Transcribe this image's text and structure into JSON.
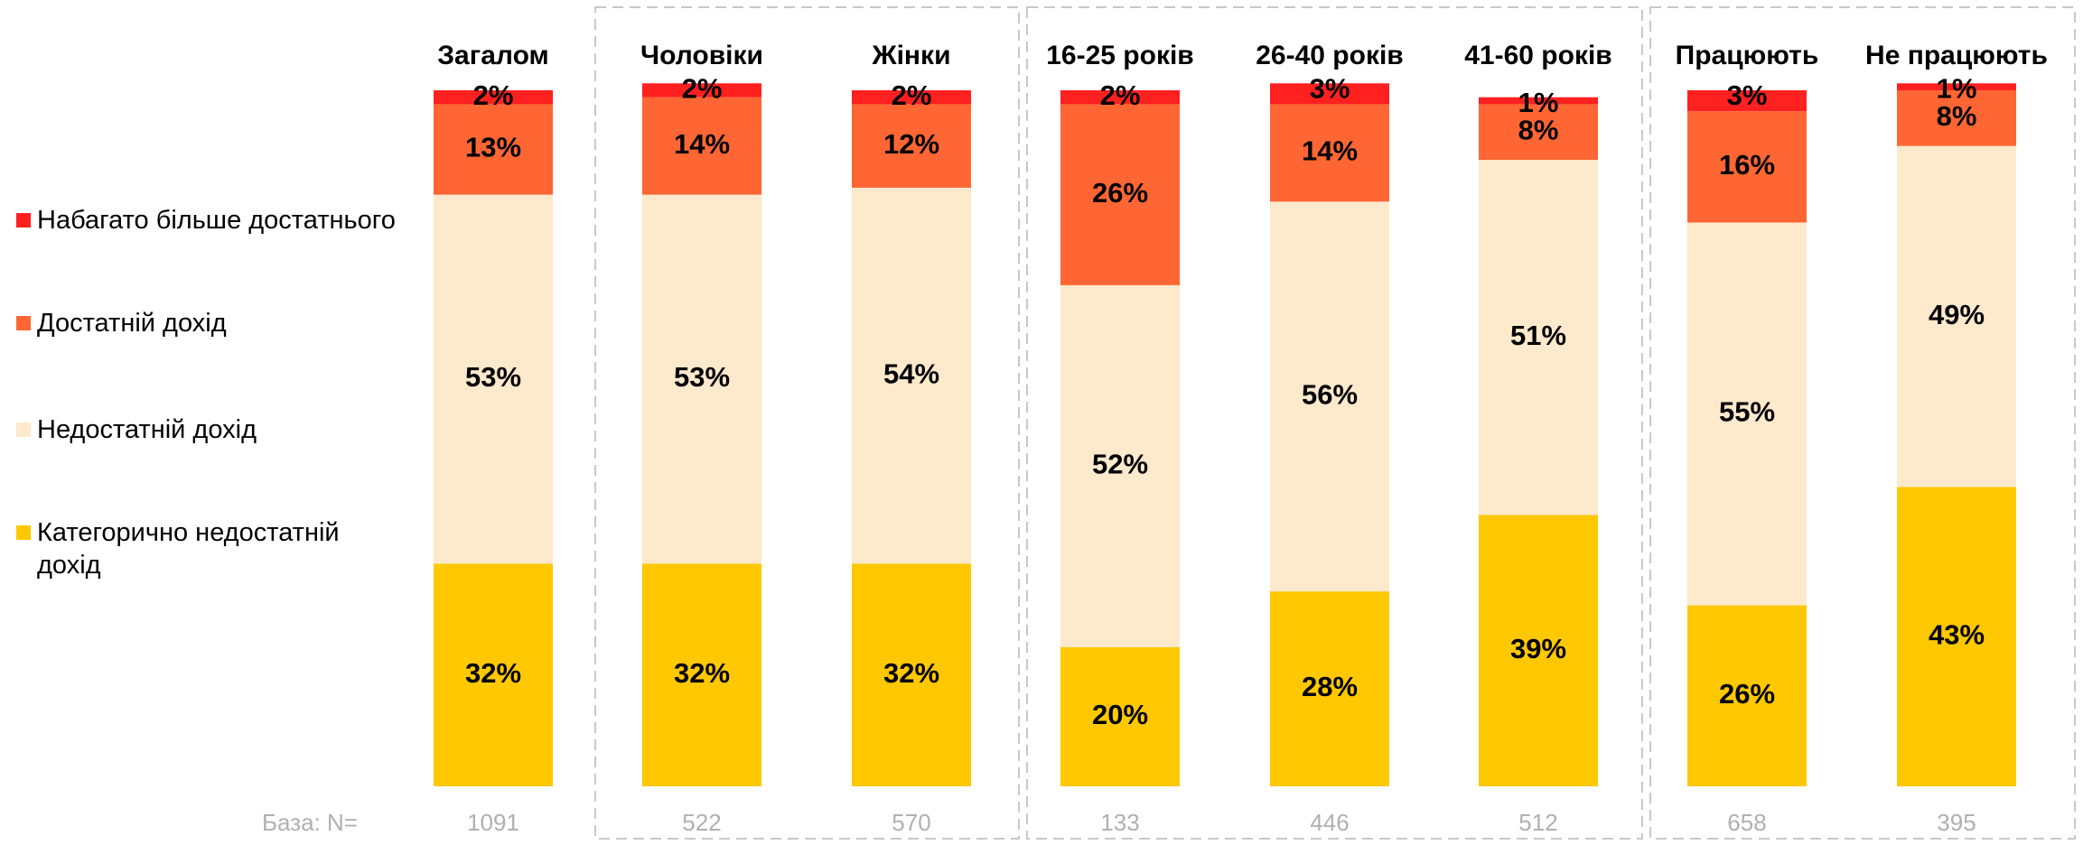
{
  "chart_data": {
    "type": "stacked_bar",
    "categories": [
      "Загалом",
      "Чоловіки",
      "Жінки",
      "16-25 років",
      "26-40 років",
      "41-60 років",
      "Працюють",
      "Не працюють"
    ],
    "series": [
      {
        "name": "Категорично недостатній дохід",
        "color": "#ffc800",
        "values": [
          32,
          32,
          32,
          20,
          28,
          39,
          26,
          43
        ],
        "value_labels": [
          "32%",
          "32%",
          "32%",
          "20%",
          "28%",
          "39%",
          "26%",
          "43%"
        ]
      },
      {
        "name": "Недостатній дохід",
        "color": "#fde9cc",
        "values": [
          53,
          53,
          54,
          52,
          56,
          51,
          55,
          49
        ],
        "value_labels": [
          "53%",
          "53%",
          "54%",
          "52%",
          "56%",
          "51%",
          "55%",
          "49%"
        ]
      },
      {
        "name": "Достатній дохід",
        "color": "#ff6633",
        "values": [
          13,
          14,
          12,
          26,
          14,
          8,
          16,
          8
        ],
        "value_labels": [
          "13%",
          "14%",
          "12%",
          "26%",
          "14%",
          "8%",
          "16%",
          "8%"
        ]
      },
      {
        "name": "Набагато більше достатнього",
        "color": "#ff2020",
        "values": [
          2,
          2,
          2,
          2,
          3,
          1,
          3,
          1
        ],
        "value_labels": [
          "2%",
          "2%",
          "2%",
          "2%",
          "3%",
          "1%",
          "3%",
          "1%"
        ]
      }
    ],
    "ylim": [
      0,
      100
    ],
    "base_label": "База: N=",
    "bases": [
      1091,
      522,
      570,
      133,
      446,
      512,
      658,
      395
    ],
    "legend": "left"
  }
}
